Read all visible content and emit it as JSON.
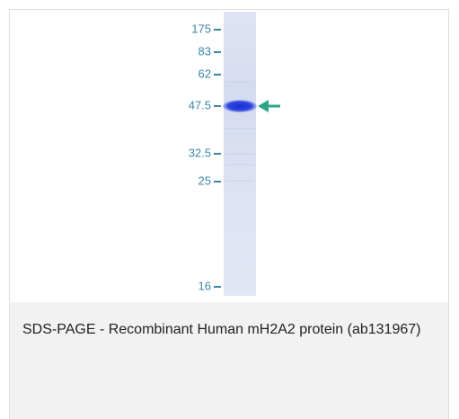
{
  "figure": {
    "markers": [
      "175",
      "83",
      "62",
      "47.5",
      "32.5",
      "25",
      "16"
    ],
    "caption": "SDS-PAGE - Recombinant Human mH2A2 protein (ab131967)"
  }
}
